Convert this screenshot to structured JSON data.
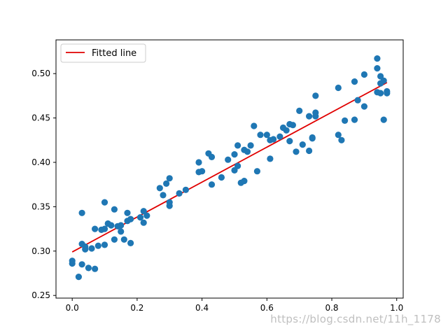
{
  "chart_data": {
    "type": "scatter",
    "title": "",
    "xlabel": "",
    "ylabel": "",
    "xlim": [
      -0.05,
      1.02
    ],
    "ylim": [
      0.247,
      0.538
    ],
    "x_ticks": [
      0.0,
      0.2,
      0.4,
      0.6,
      0.8,
      1.0
    ],
    "x_tick_labels": [
      "0.0",
      "0.2",
      "0.4",
      "0.6",
      "0.8",
      "1.0"
    ],
    "y_ticks": [
      0.25,
      0.3,
      0.35,
      0.4,
      0.45,
      0.5
    ],
    "y_tick_labels": [
      "0.25",
      "0.30",
      "0.35",
      "0.40",
      "0.45",
      "0.50"
    ],
    "grid": false,
    "legend": {
      "position": "top-left",
      "entries": [
        {
          "label": "Fitted line",
          "color": "#e00000"
        }
      ]
    },
    "series": [
      {
        "kind": "scatter",
        "color": "#1f77b4",
        "x": [
          0.0,
          0.0,
          0.02,
          0.03,
          0.03,
          0.04,
          0.05,
          0.07,
          0.08,
          0.1,
          0.03,
          0.04,
          0.06,
          0.1,
          0.07,
          0.09,
          0.11,
          0.13,
          0.14,
          0.15,
          0.15,
          0.16,
          0.12,
          0.17,
          0.18,
          0.18,
          0.21,
          0.22,
          0.22,
          0.23,
          0.13,
          0.1,
          0.17,
          0.27,
          0.3,
          0.3,
          0.3,
          0.33,
          0.35,
          0.28,
          0.29,
          0.39,
          0.39,
          0.4,
          0.42,
          0.43,
          0.43,
          0.46,
          0.48,
          0.5,
          0.5,
          0.51,
          0.51,
          0.52,
          0.53,
          0.53,
          0.55,
          0.56,
          0.54,
          0.57,
          0.58,
          0.6,
          0.61,
          0.61,
          0.62,
          0.64,
          0.65,
          0.66,
          0.67,
          0.67,
          0.68,
          0.69,
          0.7,
          0.71,
          0.73,
          0.73,
          0.74,
          0.74,
          0.75,
          0.75,
          0.75,
          0.82,
          0.82,
          0.83,
          0.84,
          0.87,
          0.87,
          0.88,
          0.9,
          0.9,
          0.94,
          0.94,
          0.94,
          0.95,
          0.95,
          0.96,
          0.96,
          0.97,
          0.97,
          0.95
        ],
        "y": [
          0.286,
          0.289,
          0.271,
          0.285,
          0.308,
          0.302,
          0.281,
          0.28,
          0.306,
          0.307,
          0.343,
          0.305,
          0.303,
          0.355,
          0.325,
          0.324,
          0.331,
          0.313,
          0.328,
          0.322,
          0.329,
          0.313,
          0.329,
          0.343,
          0.309,
          0.336,
          0.338,
          0.345,
          0.332,
          0.34,
          0.347,
          0.325,
          0.334,
          0.371,
          0.351,
          0.355,
          0.382,
          0.365,
          0.369,
          0.363,
          0.376,
          0.4,
          0.389,
          0.39,
          0.41,
          0.406,
          0.375,
          0.383,
          0.403,
          0.391,
          0.409,
          0.419,
          0.396,
          0.377,
          0.379,
          0.414,
          0.419,
          0.441,
          0.412,
          0.39,
          0.431,
          0.431,
          0.404,
          0.425,
          0.426,
          0.429,
          0.439,
          0.436,
          0.424,
          0.443,
          0.442,
          0.412,
          0.458,
          0.42,
          0.452,
          0.413,
          0.427,
          0.428,
          0.452,
          0.456,
          0.475,
          0.431,
          0.484,
          0.425,
          0.447,
          0.491,
          0.448,
          0.47,
          0.463,
          0.499,
          0.479,
          0.517,
          0.506,
          0.497,
          0.489,
          0.448,
          0.492,
          0.48,
          0.478,
          0.478
        ]
      },
      {
        "kind": "line",
        "name": "Fitted line",
        "color": "#e00000",
        "x": [
          0.0,
          0.97
        ],
        "y": [
          0.299,
          0.49
        ]
      }
    ]
  },
  "watermark": "https://blog.csdn.net/11h_1178"
}
